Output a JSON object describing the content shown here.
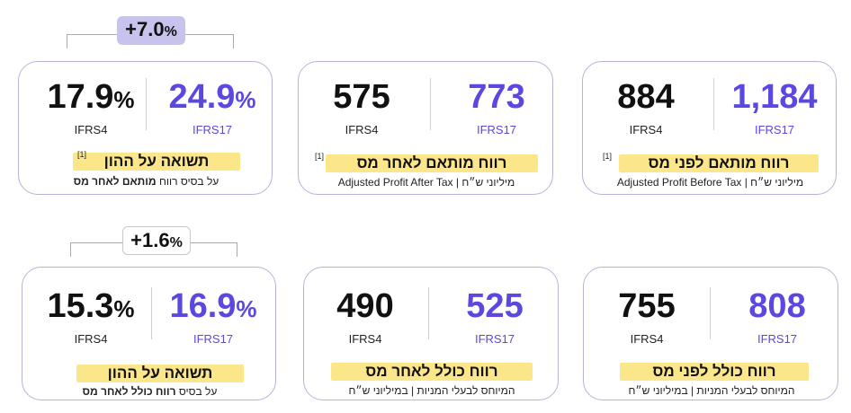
{
  "top": {
    "profit_before_tax": {
      "ifrs17_value": "1,184",
      "ifrs17_label": "IFRS17",
      "ifrs4_value": "884",
      "ifrs4_label": "IFRS4",
      "title": "רווח מותאם לפני מס",
      "note": "[1]",
      "footer": "Adjusted Profit Before Tax | מיליוני ש״ח"
    },
    "profit_after_tax": {
      "ifrs17_value": "773",
      "ifrs17_label": "IFRS17",
      "ifrs4_value": "575",
      "ifrs4_label": "IFRS4",
      "title": "רווח מותאם לאחר מס",
      "note": "[1]",
      "footer": "Adjusted Profit After Tax | מיליוני ש״ח"
    },
    "roe": {
      "ifrs17_value": "24.9",
      "ifrs4_value": "17.9",
      "pct": "%",
      "ifrs17_label": "IFRS17",
      "ifrs4_label": "IFRS4",
      "title": "תשואה על ההון",
      "note": "[1]",
      "footer_pre": "על בסיס רווח ",
      "footer_bold": "מותאם לאחר מס",
      "badge_value": "+7.0",
      "badge_pct": "%",
      "badge_color": "#c8c3ec"
    }
  },
  "bottom": {
    "total_before_tax": {
      "ifrs17_value": "808",
      "ifrs17_label": "IFRS17",
      "ifrs4_value": "755",
      "ifrs4_label": "IFRS4",
      "title": "רווח כולל לפני מס",
      "footer": "המיוחס לבעלי המניות | במיליוני ש״ח"
    },
    "total_after_tax": {
      "ifrs17_value": "525",
      "ifrs17_label": "IFRS17",
      "ifrs4_value": "490",
      "ifrs4_label": "IFRS4",
      "title": "רווח כולל לאחר מס",
      "footer": "המיוחס לבעלי המניות | במיליוני ש״ח"
    },
    "roe": {
      "ifrs17_value": "16.9",
      "ifrs4_value": "15.3",
      "pct": "%",
      "ifrs17_label": "IFRS17",
      "ifrs4_label": "IFRS4",
      "title": "תשואה על ההון",
      "footer_pre": "על בסיס ",
      "footer_bold": "רווח כולל לאחר מס",
      "badge_value": "+1.6",
      "badge_pct": "%"
    }
  },
  "colors": {
    "accent": "#5a48e0",
    "border": "#b9b2d8",
    "highlight": "#fbe68a"
  }
}
